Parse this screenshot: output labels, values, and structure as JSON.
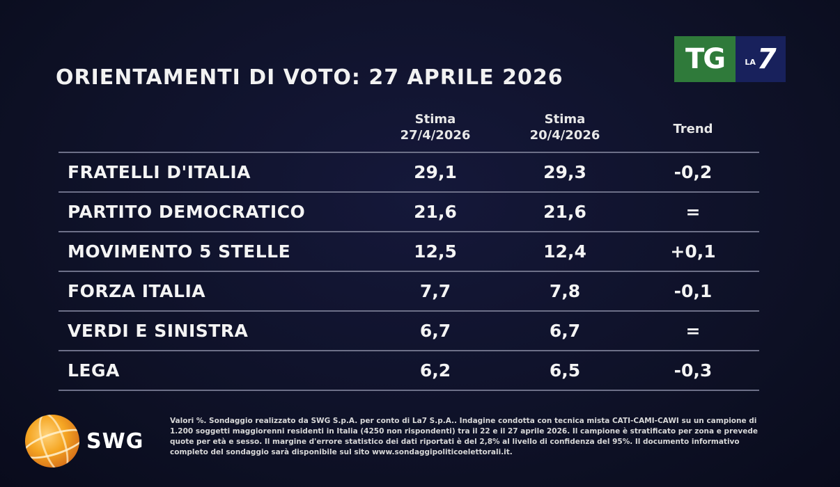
{
  "title": "ORIENTAMENTI DI VOTO: 27 APRILE 2026",
  "logo": {
    "tg": "TG",
    "la": "LA",
    "seven": "7"
  },
  "columns": {
    "current_line1": "Stima",
    "current_line2": "27/4/2026",
    "previous_line1": "Stima",
    "previous_line2": "20/4/2026",
    "trend": "Trend"
  },
  "chart_data": {
    "type": "table",
    "title": "ORIENTAMENTI DI VOTO: 27 APRILE 2026",
    "columns": [
      "Stima 27/4/2026",
      "Stima 20/4/2026",
      "Trend"
    ],
    "rows": [
      {
        "party": "FRATELLI D'ITALIA",
        "current": "29,1",
        "previous": "29,3",
        "trend": "-0,2"
      },
      {
        "party": "PARTITO DEMOCRATICO",
        "current": "21,6",
        "previous": "21,6",
        "trend": "="
      },
      {
        "party": "MOVIMENTO 5 STELLE",
        "current": "12,5",
        "previous": "12,4",
        "trend": "+0,1"
      },
      {
        "party": "FORZA ITALIA",
        "current": "7,7",
        "previous": "7,8",
        "trend": "-0,1"
      },
      {
        "party": "VERDI E SINISTRA",
        "current": "6,7",
        "previous": "6,7",
        "trend": "="
      },
      {
        "party": "LEGA",
        "current": "6,2",
        "previous": "6,5",
        "trend": "-0,3"
      }
    ]
  },
  "swg": {
    "name": "SWG"
  },
  "note": "Valori %. Sondaggio realizzato da SWG S.p.A. per conto di La7 S.p.A.. Indagine condotta con tecnica mista CATI-CAMI-CAWI su un campione di 1.200 soggetti maggiorenni residenti in Italia (4250 non rispondenti) tra il 22 e il 27 aprile 2026. Il campione è stratificato per zona e prevede quote per età e sesso. Il margine d'errore statistico dei dati riportati è del 2,8% al livello di confidenza del 95%. Il documento informativo completo del sondaggio sarà disponibile sul sito www.sondaggipoliticoelettorali.it.",
  "colors": {
    "background": "#0e1126",
    "tg_green": "#2f7a3a",
    "la7_blue": "#18215c",
    "rule": "#6d7088"
  }
}
